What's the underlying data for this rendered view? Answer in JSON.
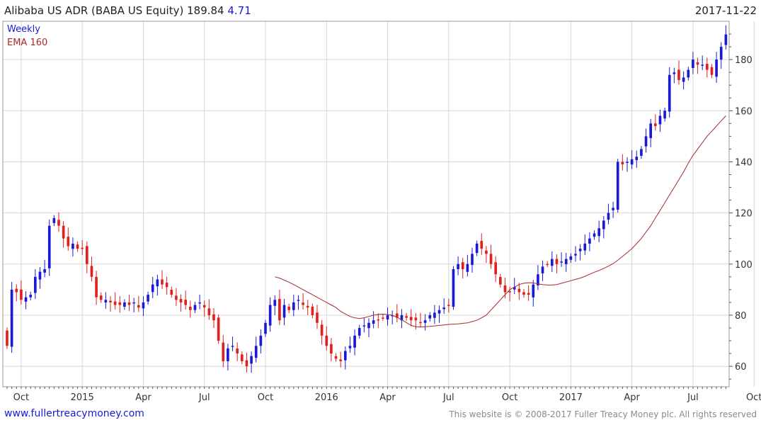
{
  "header": {
    "title": "Alibaba US ADR (BABA US Equity) 189.84",
    "change": "4.71",
    "date": "2017-11-22"
  },
  "legend": {
    "frequency": "Weekly",
    "ma_label": "EMA 160"
  },
  "footer": {
    "link": "www.fullertreacymoney.com",
    "copyright": "This website is © 2008-2017 Fuller Treacy Money plc. All rights reserved"
  },
  "colors": {
    "up": "#1a1ad6",
    "down": "#e0201c",
    "ema": "#a52a2a",
    "grid": "#d8d8d8",
    "axis": "#555555"
  },
  "chart_data": {
    "type": "candlestick",
    "frequency": "weekly",
    "ylim": [
      52,
      195
    ],
    "y_ticks": [
      60,
      80,
      100,
      120,
      140,
      160,
      180
    ],
    "y_axis_side": "right",
    "grid": true,
    "x_tick_labels": [
      "Oct",
      "2015",
      "Apr",
      "Jul",
      "Oct",
      "2016",
      "Apr",
      "Jul",
      "Oct",
      "2017",
      "Apr",
      "Jul",
      "Oct"
    ],
    "x_tick_week_index": [
      3,
      16,
      29,
      42,
      55,
      68,
      81,
      94,
      107,
      120,
      133,
      146,
      159
    ],
    "close_series": [
      68,
      90,
      89,
      86,
      87,
      88,
      95,
      97,
      98,
      115,
      118,
      115,
      110,
      107,
      108,
      106,
      106,
      100,
      95,
      87,
      86,
      86,
      85,
      84,
      84,
      85,
      84,
      85,
      83,
      85,
      88,
      92,
      94,
      92,
      91,
      88,
      86,
      85,
      84,
      82,
      84,
      85,
      83,
      80,
      78,
      70,
      62,
      67,
      68,
      65,
      62,
      60,
      64,
      68,
      72,
      77,
      84,
      86,
      78,
      84,
      82,
      85,
      86,
      84,
      83,
      80,
      77,
      72,
      68,
      65,
      63,
      62,
      66,
      68,
      72,
      75,
      76,
      77,
      78,
      78,
      79,
      80,
      80,
      79,
      80,
      79,
      78,
      78,
      77,
      78,
      80,
      81,
      82,
      83,
      84,
      98,
      100,
      98,
      100,
      104,
      108,
      106,
      104,
      100,
      96,
      92,
      89,
      89,
      91,
      89,
      88,
      88,
      92,
      96,
      99,
      100,
      102,
      100,
      101,
      102,
      103,
      104,
      106,
      108,
      110,
      112,
      114,
      117,
      120,
      122,
      140,
      139,
      140,
      141,
      142,
      145,
      150,
      155,
      154,
      158,
      160,
      174,
      175,
      172,
      173,
      176,
      180,
      178,
      178,
      176,
      174,
      180,
      185,
      189.84
    ],
    "ema_label": "EMA 160",
    "ema_series": [
      95,
      94.5,
      93.7,
      92.9,
      92,
      91,
      90,
      89,
      88,
      87,
      86,
      85,
      84,
      83,
      81.5,
      80.5,
      79.5,
      79,
      78.7,
      79,
      79.5,
      80,
      80.3,
      80.4,
      80.3,
      80,
      79.2,
      78.2,
      77.1,
      76,
      75.5,
      75.4,
      75.5,
      75.6,
      75.8,
      76,
      76.2,
      76.4,
      76.5,
      76.6,
      76.8,
      77,
      77.5,
      78,
      79,
      80,
      82,
      84,
      86,
      88,
      90,
      91,
      92,
      92.5,
      92.7,
      92.6,
      92.3,
      92,
      91.8,
      91.8,
      92,
      92.5,
      93,
      93.5,
      94,
      94.5,
      95.2,
      96,
      96.8,
      97.5,
      98.3,
      99.2,
      100.2,
      101.5,
      103,
      104.5,
      106,
      108,
      110,
      112.5,
      115,
      118,
      121,
      124,
      127,
      130,
      133,
      136,
      139.5,
      142.5,
      145,
      147.5,
      150,
      152,
      154,
      156,
      158
    ]
  }
}
